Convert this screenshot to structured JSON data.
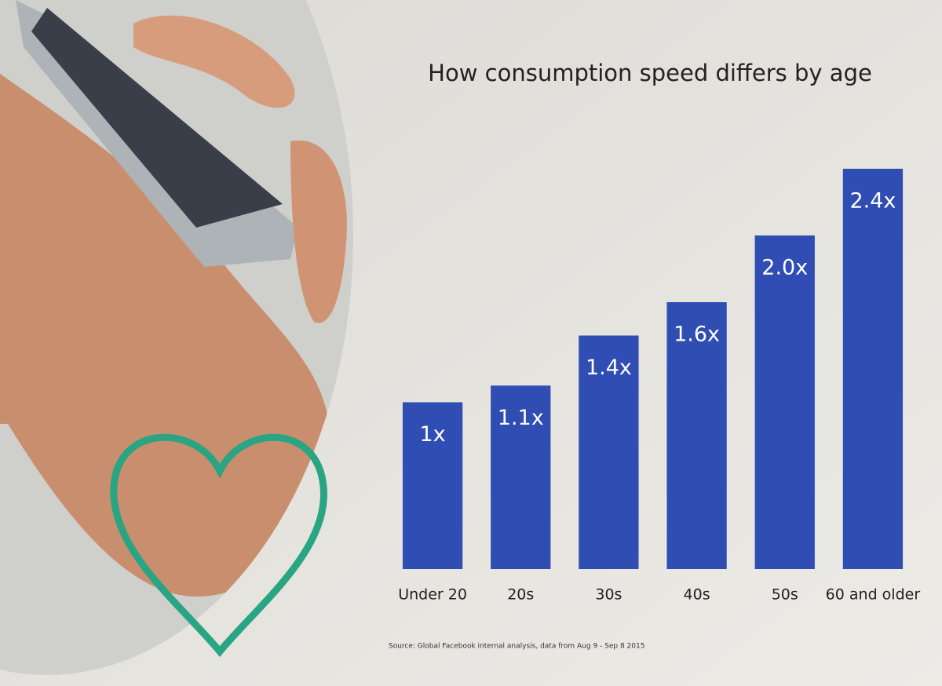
{
  "chart_data": {
    "type": "bar",
    "title": "How consumption speed differs by age",
    "categories": [
      "Under 20",
      "20s",
      "30s",
      "40s",
      "50s",
      "60 and older"
    ],
    "values": [
      1,
      1.1,
      1.4,
      1.6,
      2.0,
      2.4
    ],
    "value_labels": [
      "1x",
      "1.1x",
      "1.4x",
      "1.6x",
      "2.0x",
      "2.4x"
    ],
    "color": "#2f4db3",
    "source": "Source: Global Facebook internal analysis, data from Aug 9 - Sep 8 2015"
  }
}
